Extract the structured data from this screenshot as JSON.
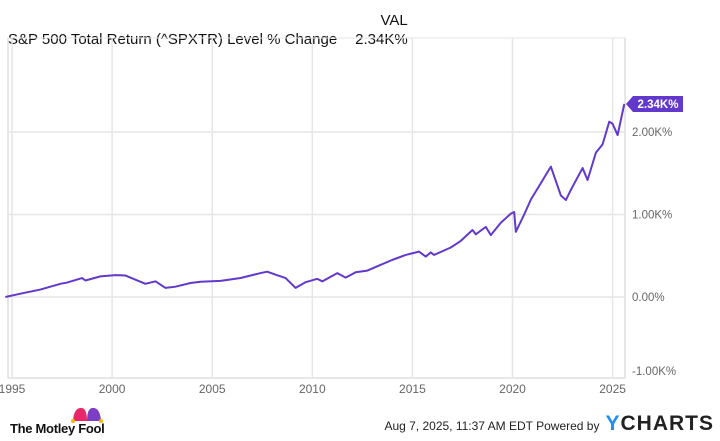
{
  "header": {
    "column_label": "VAL",
    "series_label": "S&P 500 Total Return (^SPXTR) Level % Change",
    "series_value": "2.34K%"
  },
  "colors": {
    "line": "#6239cc",
    "badge": "#6239cc",
    "grid": "#e6e6e6",
    "ycharts_accent": "#1f8ff2"
  },
  "chart_data": {
    "type": "line",
    "title": "",
    "xlabel": "",
    "ylabel": "",
    "xlim": [
      "1994-09",
      "2025-08"
    ],
    "ylim": [
      -1000,
      2700
    ],
    "grid": true,
    "y_axis_side": "right",
    "x_ticks": [
      "1995",
      "2000",
      "2005",
      "2010",
      "2015",
      "2020",
      "2025"
    ],
    "y_ticks": [
      {
        "value": -1000,
        "label": "-1.00K%"
      },
      {
        "value": 0,
        "label": "0.00%"
      },
      {
        "value": 1000,
        "label": "1.00K%"
      },
      {
        "value": 2000,
        "label": "2.00K%"
      }
    ],
    "last_value_label": "2.34K%",
    "series": [
      {
        "x": [
          "1994-09",
          "1995-06",
          "1996-06",
          "1997-06",
          "1997-10",
          "1998-07",
          "1998-09",
          "1999-06",
          "2000-03",
          "2000-09",
          "2001-03",
          "2001-09",
          "2002-03",
          "2002-09",
          "2003-03",
          "2003-12",
          "2004-06",
          "2005-06",
          "2006-06",
          "2007-06",
          "2007-10",
          "2008-03",
          "2008-09",
          "2009-03",
          "2009-09",
          "2010-04",
          "2010-07",
          "2011-04",
          "2011-09",
          "2012-03",
          "2012-10",
          "2013-06",
          "2014-01",
          "2014-09",
          "2015-05",
          "2015-09",
          "2015-12",
          "2016-02",
          "2016-12",
          "2017-06",
          "2018-01",
          "2018-03",
          "2018-09",
          "2018-12",
          "2019-06",
          "2019-12",
          "2020-02",
          "2020-03",
          "2020-08",
          "2020-12",
          "2021-06",
          "2021-12",
          "2022-06",
          "2022-09",
          "2022-12",
          "2023-07",
          "2023-10",
          "2024-03",
          "2024-07",
          "2024-11",
          "2025-01",
          "2025-04",
          "2025-08"
        ],
        "values": [
          0,
          40,
          90,
          160,
          175,
          230,
          200,
          250,
          265,
          260,
          210,
          160,
          190,
          110,
          125,
          170,
          185,
          195,
          230,
          290,
          307,
          270,
          230,
          110,
          180,
          220,
          190,
          290,
          235,
          300,
          320,
          390,
          450,
          510,
          550,
          490,
          540,
          510,
          600,
          680,
          812,
          760,
          850,
          750,
          900,
          1010,
          1030,
          790,
          1000,
          1180,
          1380,
          1580,
          1230,
          1175,
          1300,
          1563,
          1418,
          1750,
          1850,
          2125,
          2100,
          1963,
          2340
        ]
      }
    ]
  },
  "footer": {
    "logo_text": "The Motley Fool",
    "timestamp": "Aug 7, 2025, 11:37 AM EDT",
    "powered_by": "Powered by",
    "brand_y": "Y",
    "brand_rest": "CHARTS"
  }
}
